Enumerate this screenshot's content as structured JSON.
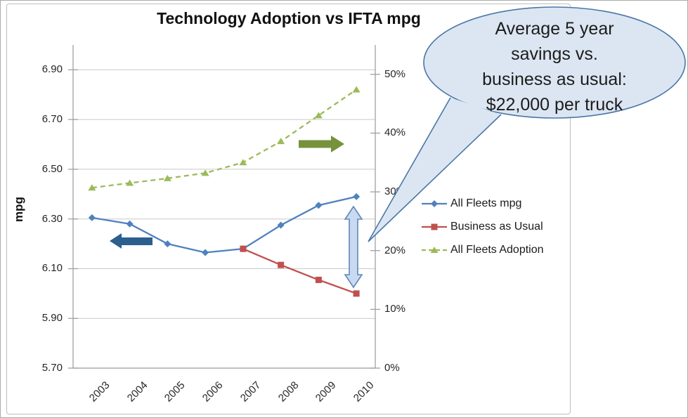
{
  "title": "Technology Adoption vs IFTA mpg",
  "chart_data": {
    "type": "line",
    "x": [
      2003,
      2004,
      2005,
      2006,
      2007,
      2008,
      2009,
      2010
    ],
    "x_ticks": [
      "2003",
      "2004",
      "2005",
      "2006",
      "2007",
      "2008",
      "2009",
      "2010"
    ],
    "series": [
      {
        "name": "All Fleets mpg",
        "axis": "left",
        "marker": "diamond",
        "dashed": false,
        "values": [
          6.305,
          6.28,
          6.2,
          6.165,
          6.18,
          6.275,
          6.355,
          6.39
        ]
      },
      {
        "name": "Business as Usual",
        "axis": "left",
        "marker": "square",
        "dashed": false,
        "values": [
          null,
          null,
          null,
          null,
          6.18,
          6.115,
          6.055,
          6.0
        ]
      },
      {
        "name": "All Fleets Adoption",
        "axis": "right",
        "marker": "triangle",
        "dashed": true,
        "values": [
          30.7,
          31.5,
          32.3,
          33.2,
          35.0,
          38.6,
          43.0,
          47.4
        ]
      }
    ],
    "left_axis": {
      "title": "mpg",
      "min": 5.7,
      "max": 7.0,
      "ticks": [
        "6.90",
        "6.70",
        "6.50",
        "6.30",
        "6.10",
        "5.90",
        "5.70"
      ],
      "tick_values": [
        6.9,
        6.7,
        6.5,
        6.3,
        6.1,
        5.9,
        5.7
      ]
    },
    "right_axis": {
      "min": 0,
      "max": 55,
      "ticks": [
        "50%",
        "40%",
        "30%",
        "20%",
        "10%",
        "0%"
      ],
      "tick_values": [
        50,
        40,
        30,
        20,
        10,
        0
      ]
    },
    "grid": true,
    "legend_position": "right"
  },
  "legend": {
    "items": [
      "All Fleets mpg",
      "Business as Usual",
      "All Fleets Adoption"
    ]
  },
  "callout": {
    "lines": [
      "Average 5 year",
      "savings vs.",
      "business as usual:",
      "$22,000 per truck"
    ]
  },
  "annotations": {
    "left_block_arrow": "points-left-at-mpg-axis",
    "right_block_arrow": "points-right-at-adoption-axis",
    "gap_arrow": "vertical-double-arrow-2010-gap"
  },
  "colors": {
    "series_blue": "#4f81bd",
    "series_red": "#c0504d",
    "series_green": "#9bbb59",
    "grid": "#c9c9c9",
    "axis": "#9a9a9a",
    "left_block_arrow": "#2c5f8e",
    "right_block_arrow": "#76923c",
    "gap_arrow_fill": "#c9daf0",
    "gap_arrow_stroke": "#5e88bb",
    "callout_fill": "#dce6f2",
    "callout_stroke": "#4a77a8",
    "tick_text": "#262626"
  }
}
